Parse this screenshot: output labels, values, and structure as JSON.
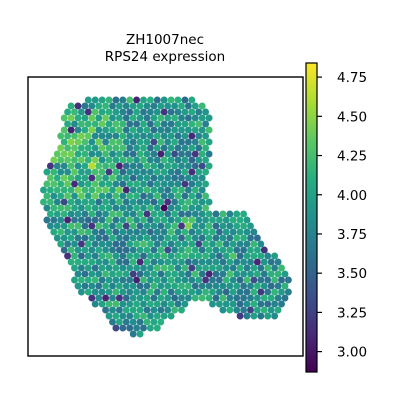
{
  "chart_data": {
    "type": "scatter",
    "title": "ZH1007nec",
    "subtitle": "RPS24 expression",
    "colormap": "viridis",
    "color_range": [
      2.87,
      4.84
    ],
    "colorbar_ticks": [
      "3.00",
      "3.25",
      "3.50",
      "3.75",
      "4.00",
      "4.25",
      "4.50",
      "4.75"
    ],
    "colorbar_tick_values": [
      3.0,
      3.25,
      3.5,
      3.75,
      4.0,
      4.25,
      4.5,
      4.75
    ],
    "x_axis": "none",
    "y_axis": "none",
    "grid": false,
    "point_value_range": [
      2.87,
      4.84
    ],
    "points_description_note": ""
  }
}
